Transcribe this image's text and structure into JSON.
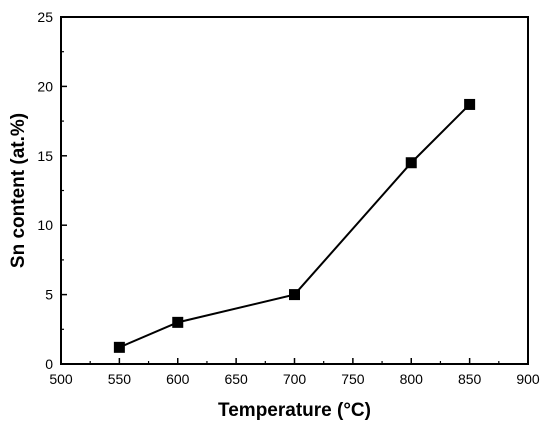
{
  "chart_data": {
    "type": "line",
    "markers": "square",
    "grid": false,
    "xlabel": "Temperature (°C)",
    "ylabel": "Sn content (at.%)",
    "xlim": [
      500,
      900
    ],
    "ylim": [
      0,
      25
    ],
    "xticks": [
      500,
      550,
      600,
      650,
      700,
      750,
      800,
      850,
      900
    ],
    "yticks": [
      0,
      5,
      10,
      15,
      20,
      25
    ],
    "x": [
      550,
      600,
      700,
      800,
      850
    ],
    "y": [
      1.2,
      3.0,
      5.0,
      14.5,
      18.7
    ],
    "color": "#000000"
  }
}
